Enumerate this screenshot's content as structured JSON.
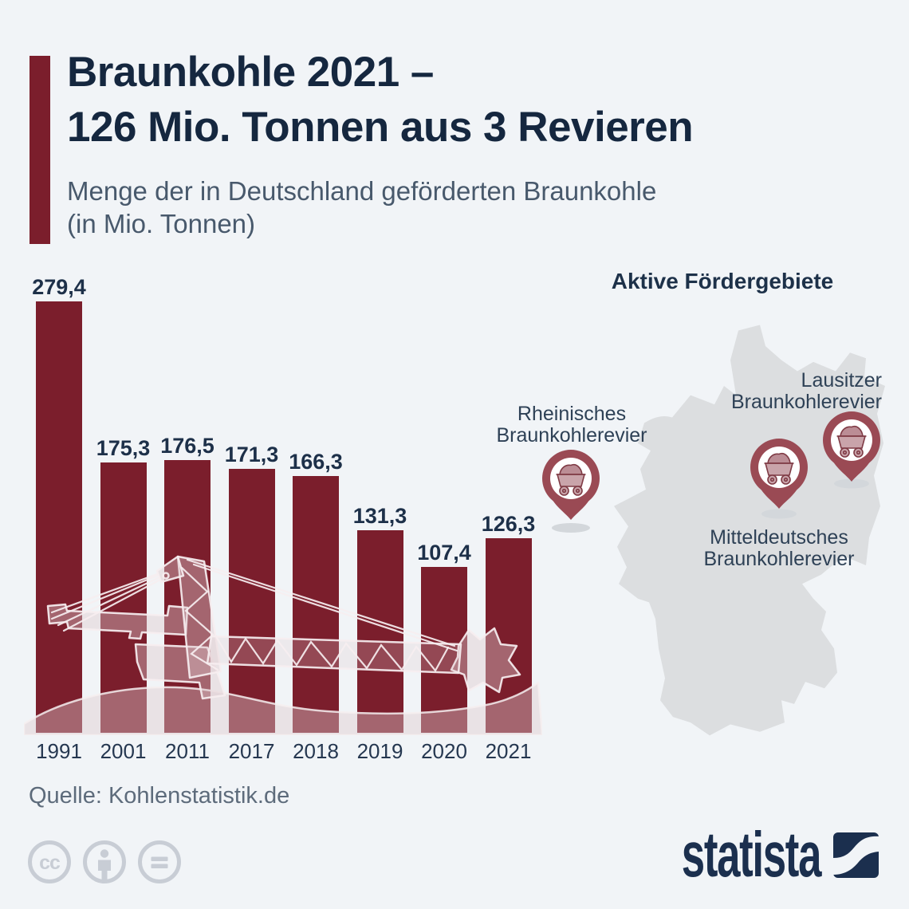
{
  "header": {
    "title_line1": "Braunkohle 2021 –",
    "title_line2": "126 Mio. Tonnen aus 3 Revieren",
    "subtitle_line1": "Menge der in Deutschland geförderten Braunkohle",
    "subtitle_line2": "(in Mio. Tonnen)"
  },
  "chart_data": {
    "type": "bar",
    "title": "Menge der in Deutschland geförderten Braunkohle (in Mio. Tonnen)",
    "categories": [
      "1991",
      "2001",
      "2011",
      "2017",
      "2018",
      "2019",
      "2020",
      "2021"
    ],
    "values": [
      279.4,
      175.3,
      176.5,
      171.3,
      166.3,
      131.3,
      107.4,
      126.3
    ],
    "value_labels": [
      "279,4",
      "175,3",
      "176,5",
      "171,3",
      "166,3",
      "131,3",
      "107,4",
      "126,3"
    ],
    "xlabel": "",
    "ylabel": "Mio. Tonnen",
    "ylim": [
      0,
      290
    ],
    "grid": false,
    "legend": "none",
    "bar_color": "#7b1e2c"
  },
  "map": {
    "title": "Aktive Fördergebiete",
    "regions": [
      {
        "name_line1": "Rheinisches",
        "name_line2": "Braunkohlerevier"
      },
      {
        "name_line1": "Lausitzer",
        "name_line2": "Braunkohlerevier"
      },
      {
        "name_line1": "Mitteldeutsches",
        "name_line2": "Braunkohlerevier"
      }
    ]
  },
  "footer": {
    "source": "Quelle: Kohlenstatistik.de",
    "license_icons": [
      "cc-icon",
      "attribution-person-icon",
      "no-derivatives-icon"
    ],
    "brand": "statista"
  },
  "colors": {
    "background": "#f1f4f7",
    "bar": "#7b1e2c",
    "title_navy": "#15273f",
    "subtitle_gray": "#48596c",
    "map_gray": "#dcdee0",
    "pin_red": "#9a4a54",
    "cart_light": "#c9a4aa",
    "cart_outline": "#7f3b45",
    "cc_gray": "#c8cdd5",
    "brand_navy": "#1b2f4e"
  }
}
